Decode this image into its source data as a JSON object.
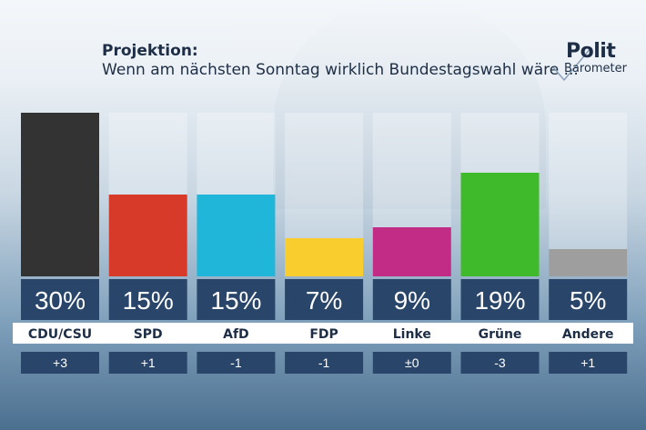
{
  "header": {
    "title": "Projektion:",
    "subtitle": "Wenn am nächsten Sonntag wirklich Bundestagswahl wäre ..."
  },
  "logo": {
    "line1": "Polit",
    "line2": "Barometer"
  },
  "chart_data": {
    "type": "bar",
    "categories": [
      "CDU/CSU",
      "SPD",
      "AfD",
      "FDP",
      "Linke",
      "Grüne",
      "Andere"
    ],
    "values": [
      30,
      15,
      15,
      7,
      9,
      19,
      5
    ],
    "value_labels": [
      "30%",
      "15%",
      "15%",
      "7%",
      "9%",
      "19%",
      "5%"
    ],
    "changes": [
      "+3",
      "+1",
      "-1",
      "-1",
      "±0",
      "-3",
      "+1"
    ],
    "colors": [
      "#333333",
      "#d83a2a",
      "#1fb6d9",
      "#f9cd2d",
      "#c22b86",
      "#3fba2a",
      "#9e9e9e"
    ],
    "ylim": [
      0,
      30
    ]
  }
}
